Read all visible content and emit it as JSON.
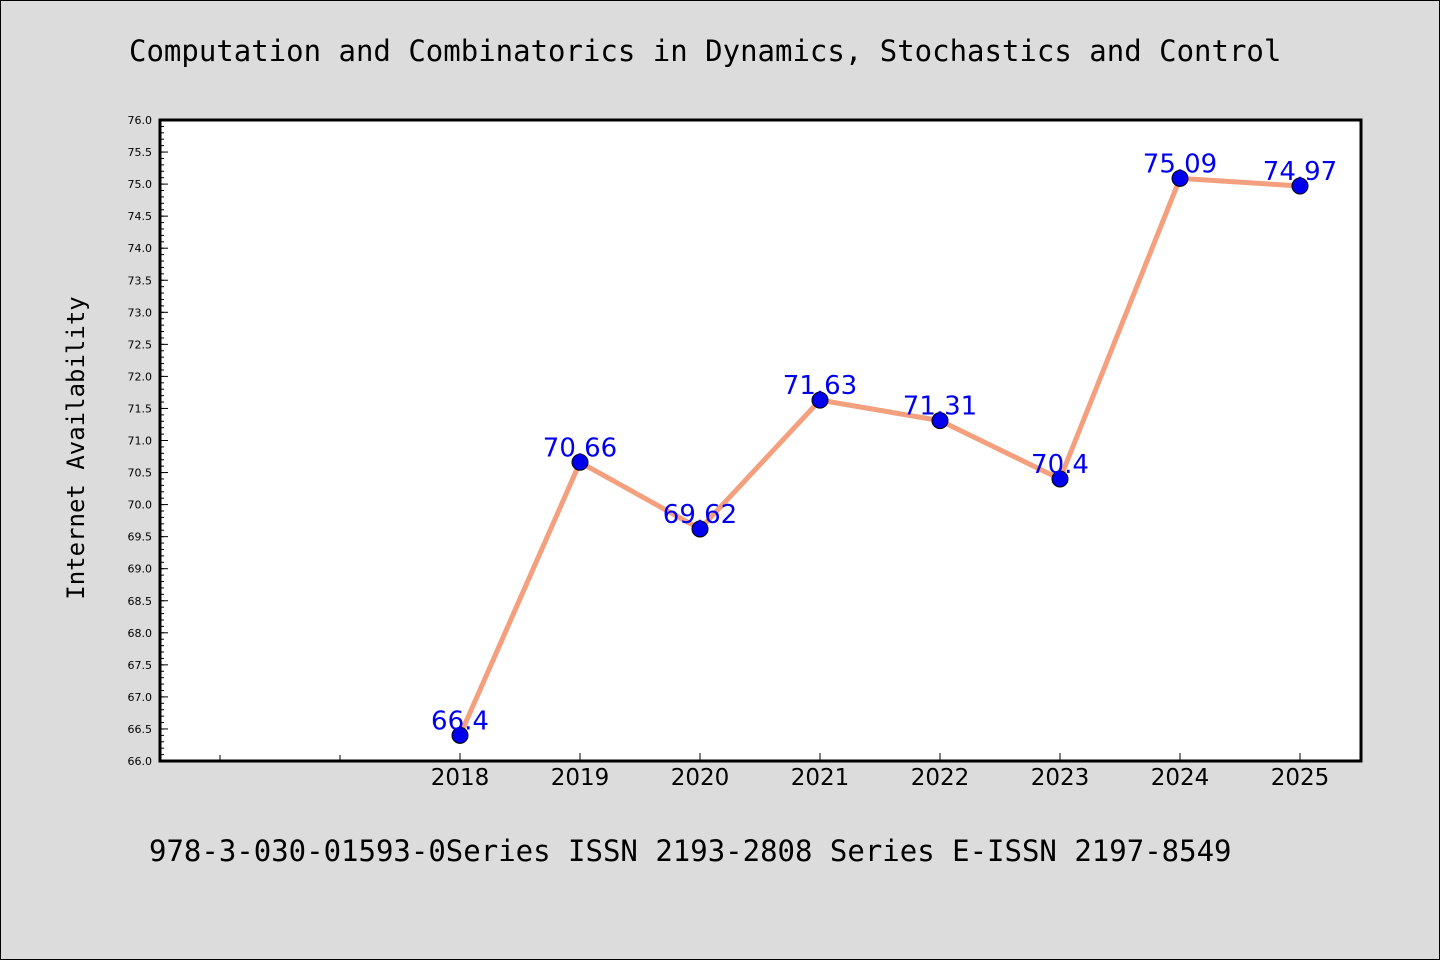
{
  "title": "Computation and Combinatorics in Dynamics, Stochastics and Control",
  "footer": "978-3-030-01593-0Series ISSN 2193-2808 Series E-ISSN 2197-8549",
  "chart_data": {
    "type": "line",
    "title": "Computation and Combinatorics in Dynamics, Stochastics and Control",
    "xlabel": "",
    "ylabel": "Internet Availability",
    "categories": [
      "2018",
      "2019",
      "2020",
      "2021",
      "2022",
      "2023",
      "2024",
      "2025"
    ],
    "series": [
      {
        "values": [
          66.4,
          70.66,
          69.62,
          71.63,
          71.31,
          70.4,
          75.09,
          74.97
        ],
        "labels": [
          "66.4",
          "70.66",
          "69.62",
          "71.63",
          "71.31",
          "70.4",
          "75.09",
          "74.97"
        ]
      }
    ],
    "ylim": [
      66.0,
      76.0
    ],
    "yticks": [
      "66.0",
      "66.5",
      "67.0",
      "67.5",
      "68.0",
      "68.5",
      "69.0",
      "69.5",
      "70.0",
      "70.5",
      "71.0",
      "71.5",
      "72.0",
      "72.5",
      "73.0",
      "73.5",
      "74.0",
      "74.5",
      "75.0",
      "75.5",
      "76.0"
    ],
    "grid": false,
    "colors": {
      "line": "#f4a07e",
      "marker": "#0000ee",
      "label": "#0000ee",
      "plot_background": "#ffffff",
      "page_background": "#dcdcdc"
    }
  }
}
